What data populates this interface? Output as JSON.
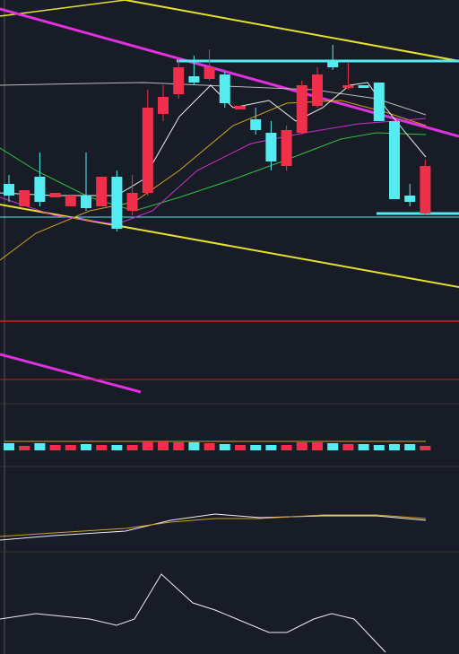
{
  "chart_data": {
    "type": "candlestick",
    "open": [
      495,
      470,
      503,
      480,
      470,
      482,
      470,
      503,
      465,
      485,
      573,
      595,
      615,
      612,
      617,
      578,
      567,
      552,
      515,
      552,
      582,
      632,
      602,
      605,
      608,
      565,
      482,
      462
    ],
    "close": [
      482,
      488,
      475,
      485,
      482,
      468,
      503,
      445,
      485,
      580,
      592,
      625,
      608,
      625,
      585,
      582,
      555,
      520,
      555,
      605,
      617,
      625,
      605,
      602,
      565,
      478,
      475,
      515
    ],
    "high": [
      505,
      488,
      530,
      485,
      482,
      530,
      503,
      510,
      505,
      600,
      605,
      635,
      638,
      645,
      620,
      582,
      580,
      565,
      560,
      610,
      625,
      650,
      630,
      605,
      608,
      565,
      495,
      522
    ],
    "low": [
      475,
      470,
      470,
      480,
      470,
      465,
      470,
      442,
      460,
      482,
      565,
      590,
      605,
      610,
      580,
      578,
      550,
      510,
      510,
      550,
      580,
      622,
      600,
      602,
      565,
      478,
      470,
      460
    ],
    "ylim": [
      250,
      700
    ],
    "volume": [
      8,
      5,
      8,
      6,
      6,
      7,
      6,
      6,
      6,
      10,
      10,
      9,
      9,
      8,
      7,
      6,
      6,
      6,
      6,
      9,
      9,
      8,
      7,
      7,
      6,
      7,
      7,
      5
    ],
    "vlim": [
      0,
      12
    ],
    "up_color": "#f0304a",
    "down_color": "#54ecf0"
  }
}
